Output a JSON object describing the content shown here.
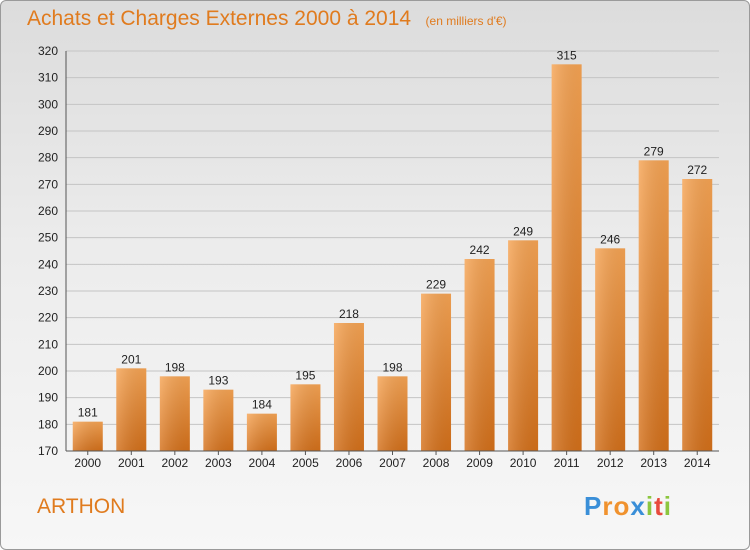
{
  "chart_data": {
    "type": "bar",
    "title": "Achats et Charges Externes 2000 à 2014",
    "subtitle": "(en milliers d'€)",
    "categories": [
      "2000",
      "2001",
      "2002",
      "2003",
      "2004",
      "2005",
      "2006",
      "2007",
      "2008",
      "2009",
      "2010",
      "2011",
      "2012",
      "2013",
      "2014"
    ],
    "values": [
      181,
      201,
      198,
      193,
      184,
      195,
      218,
      198,
      229,
      242,
      249,
      315,
      246,
      279,
      272
    ],
    "ylim": [
      170,
      320
    ],
    "yticks": [
      170,
      180,
      190,
      200,
      210,
      220,
      230,
      240,
      250,
      260,
      270,
      280,
      290,
      300,
      310,
      320
    ],
    "grid": true,
    "bar_color": "#f0922e"
  },
  "place": "ARTHON",
  "logo": {
    "letters": [
      "P",
      "r",
      "o",
      "x",
      "i",
      "t",
      "i"
    ],
    "colors": [
      "#3a8fd8",
      "#f0922e",
      "#f0922e",
      "#3a8fd8",
      "#8cc63f",
      "#e84a3c",
      "#8cc63f"
    ]
  }
}
